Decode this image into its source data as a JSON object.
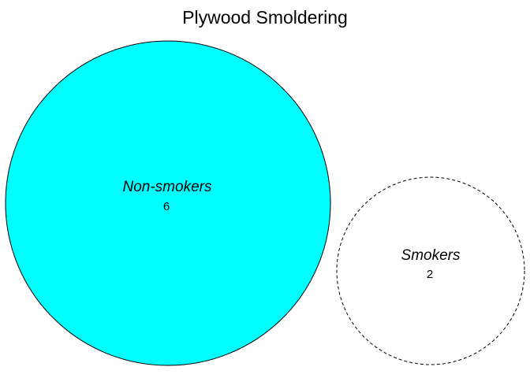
{
  "title": "Plywood Smoldering",
  "sets": [
    {
      "label": "Non-smokers",
      "count": "6",
      "fill": "#00ffff",
      "stroke": "#000000",
      "line_style": "solid"
    },
    {
      "label": "Smokers",
      "count": "2",
      "fill": "none",
      "stroke": "#000000",
      "line_style": "dashed"
    }
  ]
}
